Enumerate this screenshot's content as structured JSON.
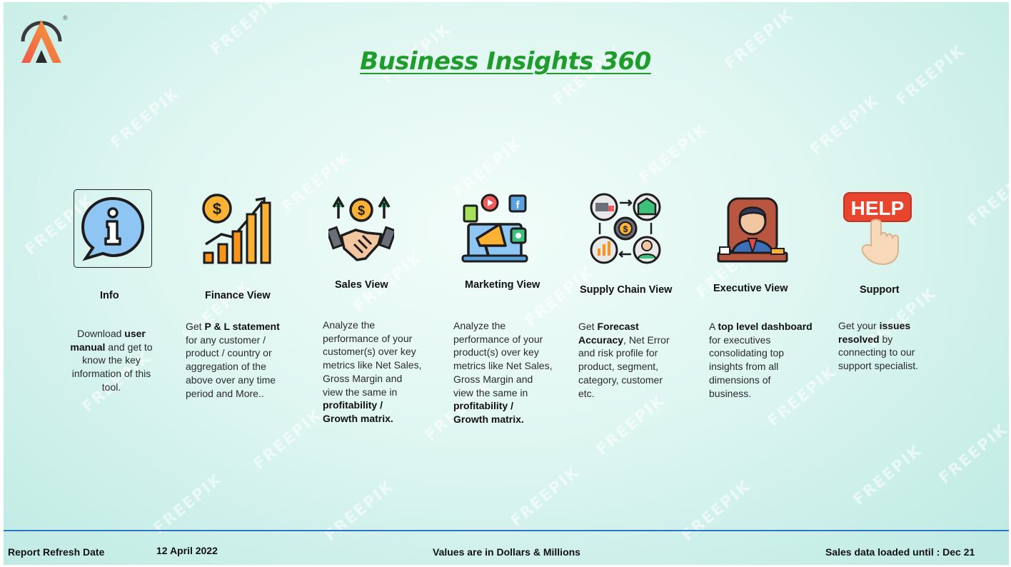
{
  "header": {
    "title": "Business Insights 360",
    "logo_reg": "®"
  },
  "watermark": "FREEPIK",
  "cards": [
    {
      "id": "info",
      "label": "Info",
      "icon": "info-speech-bubble-icon",
      "lines": [
        [
          {
            "t": "Download "
          },
          {
            "t": "user",
            "b": true
          }
        ],
        [
          {
            "t": "manual",
            "b": true
          },
          {
            "t": " and get to"
          }
        ],
        [
          {
            "t": "know the key"
          }
        ],
        [
          {
            "t": "information of this"
          }
        ],
        [
          {
            "t": "tool."
          }
        ]
      ]
    },
    {
      "id": "finance",
      "label": "Finance View",
      "icon": "finance-growth-chart-icon",
      "lines": [
        [
          {
            "t": "Get  "
          },
          {
            "t": "P & L statement",
            "b": true
          }
        ],
        [
          {
            "t": "for any customer /"
          }
        ],
        [
          {
            "t": "product / country or"
          }
        ],
        [
          {
            "t": "aggregation of the"
          }
        ],
        [
          {
            "t": "above over any time"
          }
        ],
        [
          {
            "t": "period and More.."
          }
        ]
      ]
    },
    {
      "id": "sales",
      "label": "Sales View",
      "icon": "handshake-dollar-icon",
      "lines": [
        [
          {
            "t": "Analyze the"
          }
        ],
        [
          {
            "t": "performance of your"
          }
        ],
        [
          {
            "t": "customer(s) over key"
          }
        ],
        [
          {
            "t": "metrics like Net Sales,"
          }
        ],
        [
          {
            "t": "Gross Margin and"
          }
        ],
        [
          {
            "t": "view the same in"
          }
        ],
        [
          {
            "t": "profitability /",
            "b": true
          }
        ],
        [
          {
            "t": "Growth matrix.",
            "b": true
          }
        ]
      ]
    },
    {
      "id": "marketing",
      "label": "Marketing View",
      "icon": "marketing-megaphone-icon",
      "lines": [
        [
          {
            "t": "Analyze the"
          }
        ],
        [
          {
            "t": "performance of your"
          }
        ],
        [
          {
            "t": "product(s) over key"
          }
        ],
        [
          {
            "t": "metrics like Net Sales,"
          }
        ],
        [
          {
            "t": "Gross Margin and"
          }
        ],
        [
          {
            "t": "view the same in"
          }
        ],
        [
          {
            "t": "profitability /",
            "b": true
          }
        ],
        [
          {
            "t": "Growth matrix.",
            "b": true
          }
        ]
      ]
    },
    {
      "id": "supply",
      "label": "Supply Chain View",
      "icon": "supply-chain-cycle-icon",
      "lines": [
        [
          {
            "t": "Get "
          },
          {
            "t": "Forecast",
            "b": true
          }
        ],
        [
          {
            "t": "Accuracy",
            "b": true
          },
          {
            "t": ", Net Error"
          }
        ],
        [
          {
            "t": "and risk profile for"
          }
        ],
        [
          {
            "t": "product, segment,"
          }
        ],
        [
          {
            "t": "category, customer"
          }
        ],
        [
          {
            "t": "etc."
          }
        ]
      ]
    },
    {
      "id": "executive",
      "label": "Executive View",
      "icon": "executive-businessman-icon",
      "lines": [
        [
          {
            "t": "A "
          },
          {
            "t": "top level dashboard",
            "b": true
          }
        ],
        [
          {
            "t": "for executives"
          }
        ],
        [
          {
            "t": "consolidating top"
          }
        ],
        [
          {
            "t": "insights from all"
          }
        ],
        [
          {
            "t": "dimensions of"
          }
        ],
        [
          {
            "t": "business."
          }
        ]
      ]
    },
    {
      "id": "support",
      "label": "Support",
      "icon": "help-sign-hand-icon",
      "help_text": "HELP",
      "lines": [
        [
          {
            "t": "Get your "
          },
          {
            "t": "issues",
            "b": true
          }
        ],
        [
          {
            "t": "resolved",
            "b": true
          },
          {
            "t": " by"
          }
        ],
        [
          {
            "t": "connecting to our"
          }
        ],
        [
          {
            "t": "support specialist."
          }
        ]
      ]
    }
  ],
  "footer": {
    "refresh_label": "Report Refresh Date",
    "refresh_date": "12 April 2022",
    "units_note": "Values are in Dollars & Millions",
    "sales_loaded": "Sales data loaded until : Dec 21"
  },
  "colors": {
    "title": "#1e9d2b",
    "footer_line": "#2e75c9",
    "bg": "#dff6f1"
  }
}
